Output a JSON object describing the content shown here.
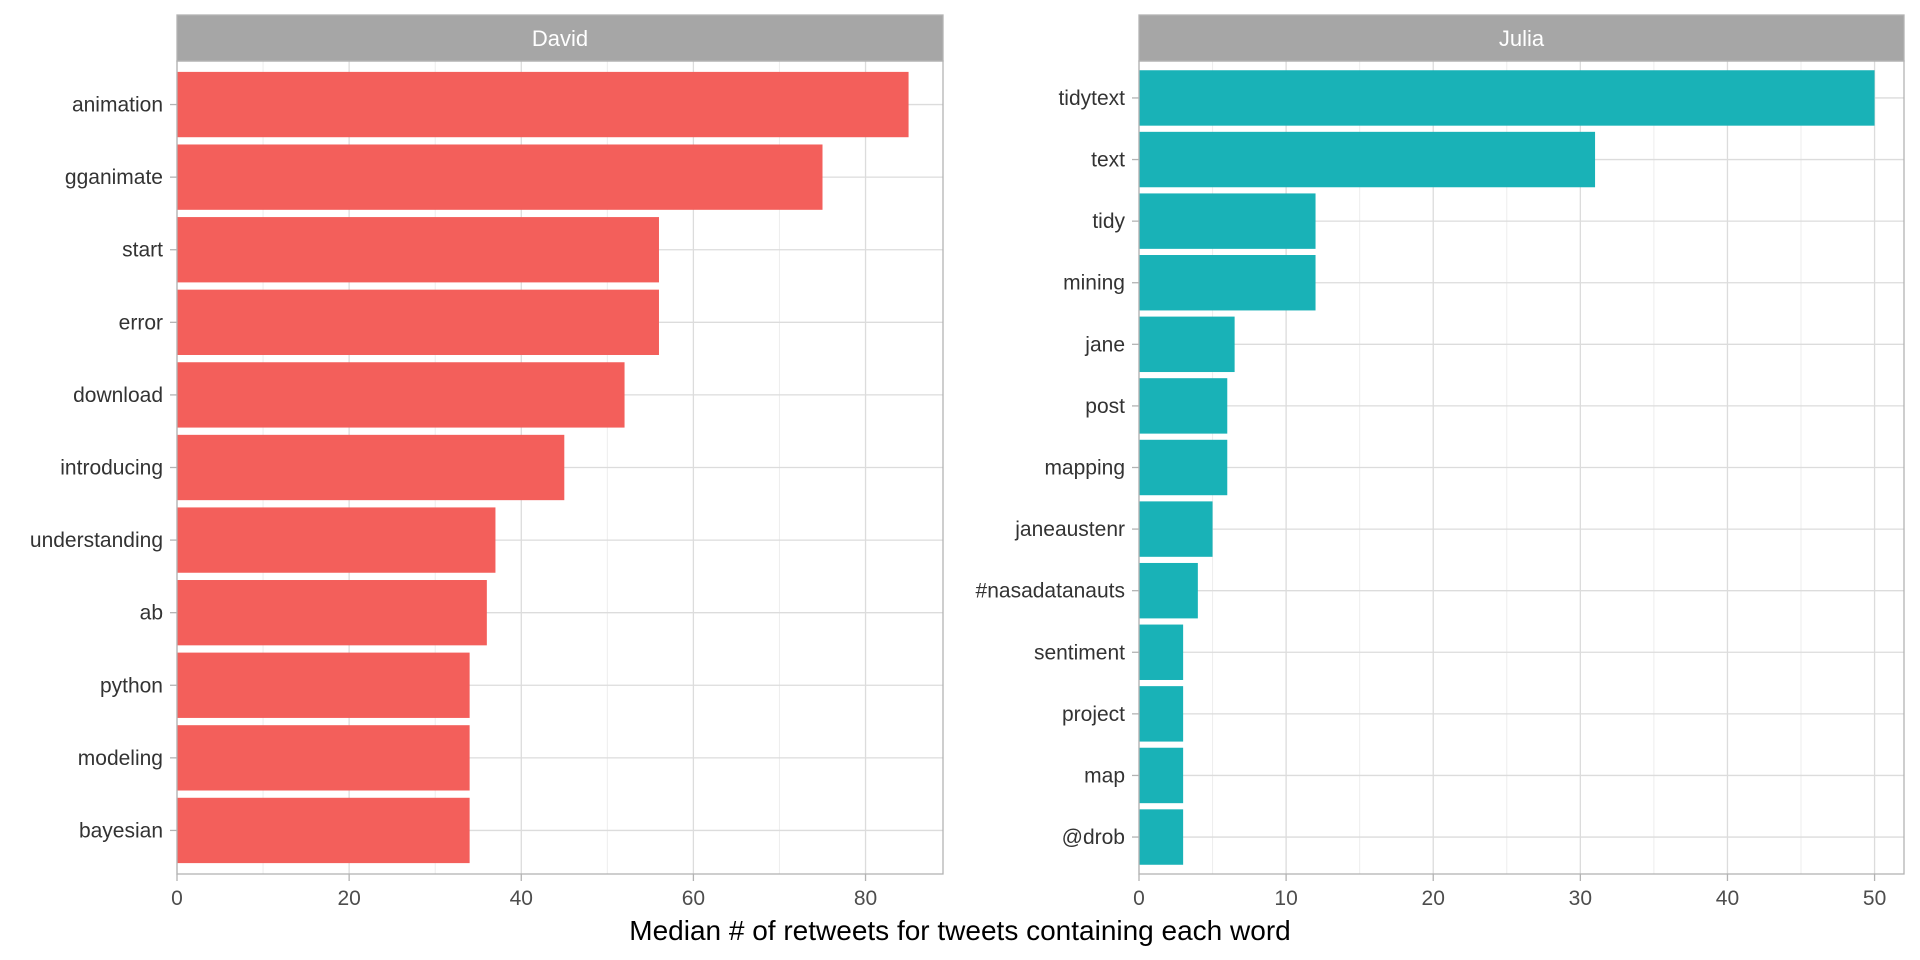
{
  "chart_data": {
    "type": "bar",
    "orientation": "horizontal",
    "xlabel": "Median # of retweets for tweets containing each word",
    "ylabel": "",
    "grid": true,
    "panels": [
      {
        "name": "David",
        "color": "#F35F5B",
        "xlim": [
          0,
          89
        ],
        "xticks": [
          0,
          20,
          40,
          60,
          80
        ],
        "categories": [
          "animation",
          "gganimate",
          "start",
          "error",
          "download",
          "introducing",
          "understanding",
          "ab",
          "python",
          "modeling",
          "bayesian"
        ],
        "values": [
          85,
          75,
          56,
          56,
          52,
          45,
          37,
          36,
          34,
          34,
          34
        ]
      },
      {
        "name": "Julia",
        "color": "#19B2B7",
        "xlim": [
          0,
          52
        ],
        "xticks": [
          0,
          10,
          20,
          30,
          40,
          50
        ],
        "categories": [
          "tidytext",
          "text",
          "tidy",
          "mining",
          "jane",
          "post",
          "mapping",
          "janeaustenr",
          "#nasadatanauts",
          "sentiment",
          "project",
          "map",
          "@drob"
        ],
        "values": [
          50,
          31,
          12,
          12,
          6.5,
          6,
          6,
          5,
          4,
          3,
          3,
          3,
          3
        ]
      }
    ]
  },
  "colors": {
    "strip_background": "#A6A6A6",
    "panel_border": "#B3B3B3",
    "grid_major": "#DCDCDC",
    "grid_minor": "#EDEDED"
  }
}
